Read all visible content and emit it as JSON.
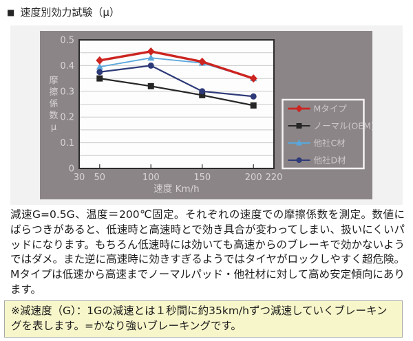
{
  "title": {
    "bullet": "■",
    "text": "速度別効力試験（μ）"
  },
  "colors": {
    "panel_bg": "#8b8587",
    "band_bg": "#f3f2f2",
    "plot_bg": "#fdfdfd",
    "plot_border": "#2b2b2b",
    "grid": "#c9c9c9",
    "tick": "#4a4a4a",
    "axis_text": "#d8d4d4",
    "legend_text": "#cfc9ca",
    "legend_border": "#f4f2f2",
    "series_m_red": "#cc2420",
    "series_oem_black": "#262626",
    "series_c_lightblue": "#5aa7dc",
    "series_d_navy": "#2e3a78",
    "note_bg": "#f7f6ca",
    "note_border": "#a9a9a9"
  },
  "chart_data": {
    "type": "line",
    "x": [
      50,
      100,
      150,
      200
    ],
    "x_ticks": [
      30,
      50,
      100,
      150,
      200,
      220
    ],
    "xlim": [
      30,
      220
    ],
    "y_ticks": [
      0,
      0.1,
      0.2,
      0.3,
      0.4,
      0.5
    ],
    "ylim": [
      0,
      0.5
    ],
    "grid_step": 0.05,
    "xlabel": "速度 Km/h",
    "ylabel": "摩擦係数μ",
    "legend_position": "right-inside-panel",
    "series": [
      {
        "name": "Mタイプ",
        "color": "#cc2420",
        "marker": "diamond",
        "line_width": 3.4,
        "values": [
          0.42,
          0.455,
          0.415,
          0.35
        ]
      },
      {
        "name": "ノーマル(OEM)",
        "color": "#262626",
        "marker": "square",
        "line_width": 2.2,
        "values": [
          0.35,
          0.32,
          0.285,
          0.245
        ]
      },
      {
        "name": "他社C材",
        "color": "#5aa7dc",
        "marker": "triangle",
        "line_width": 1.8,
        "values": [
          0.395,
          0.43,
          0.41,
          0.35
        ]
      },
      {
        "name": "他社D材",
        "color": "#2e3a78",
        "marker": "circle",
        "line_width": 2.2,
        "values": [
          0.375,
          0.4,
          0.3,
          0.28
        ]
      }
    ]
  },
  "description": "減速G=0.5G、温度＝200℃固定。それぞれの速度での摩擦係数を測定。数値にばらつきがあると、低速時と高速時とで効き具合が変わってしまい、扱いにくいパッドになります。もちろん低速時には効いても高速からのブレーキで効かないようではダメ。また逆に高速時に効きすぎるようではタイヤがロックしやすく超危険。Mタイプは低速から高速までノーマルパッド・他社材に対して高め安定傾向にあります。",
  "note": "※減速度（G）：1Gの減速とは１秒間に約35km/hずつ減速していくブレーキングを表します。=かなり強いブレーキングです。"
}
